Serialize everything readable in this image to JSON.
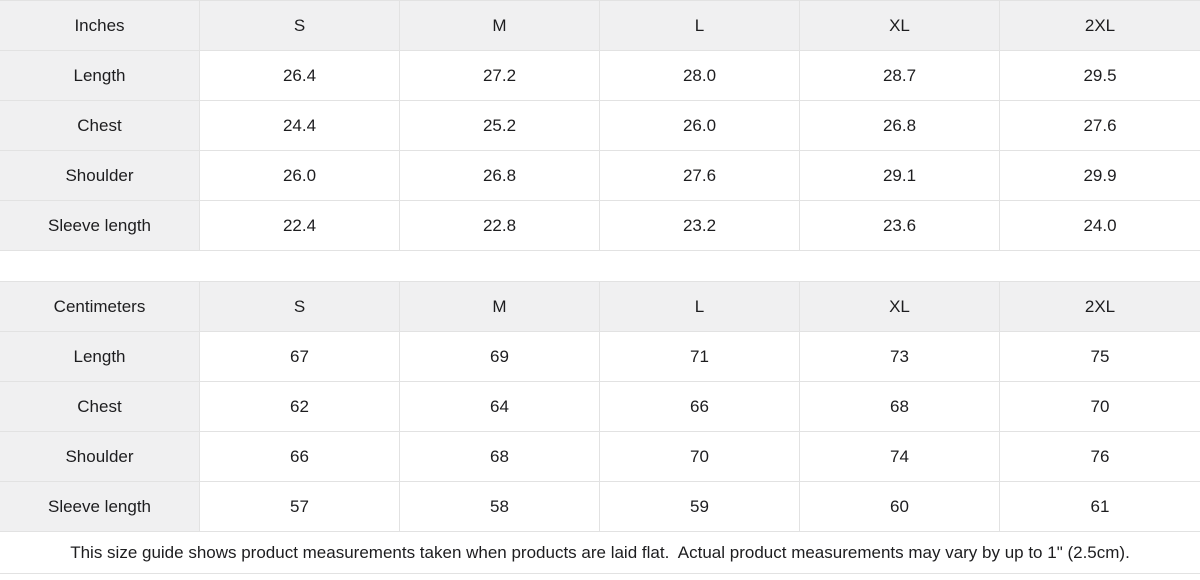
{
  "colors": {
    "header_background": "#f0f0f1",
    "cell_background": "#ffffff",
    "border": "#e2e2e2",
    "text": "#1d1d1f"
  },
  "tables": [
    {
      "unit_label": "Inches",
      "sizes": [
        "S",
        "M",
        "L",
        "XL",
        "2XL"
      ],
      "rows": [
        {
          "label": "Length",
          "values": [
            "26.4",
            "27.2",
            "28.0",
            "28.7",
            "29.5"
          ]
        },
        {
          "label": "Chest",
          "values": [
            "24.4",
            "25.2",
            "26.0",
            "26.8",
            "27.6"
          ]
        },
        {
          "label": "Shoulder",
          "values": [
            "26.0",
            "26.8",
            "27.6",
            "29.1",
            "29.9"
          ]
        },
        {
          "label": "Sleeve length",
          "values": [
            "22.4",
            "22.8",
            "23.2",
            "23.6",
            "24.0"
          ]
        }
      ]
    },
    {
      "unit_label": "Centimeters",
      "sizes": [
        "S",
        "M",
        "L",
        "XL",
        "2XL"
      ],
      "rows": [
        {
          "label": "Length",
          "values": [
            "67",
            "69",
            "71",
            "73",
            "75"
          ]
        },
        {
          "label": "Chest",
          "values": [
            "62",
            "64",
            "66",
            "68",
            "70"
          ]
        },
        {
          "label": "Shoulder",
          "values": [
            "66",
            "68",
            "70",
            "74",
            "76"
          ]
        },
        {
          "label": "Sleeve length",
          "values": [
            "57",
            "58",
            "59",
            "60",
            "61"
          ]
        }
      ]
    }
  ],
  "footer": {
    "note": "This size guide shows product measurements taken when products are laid flat.  Actual product measurements may vary by up to 1\" (2.5cm)."
  }
}
